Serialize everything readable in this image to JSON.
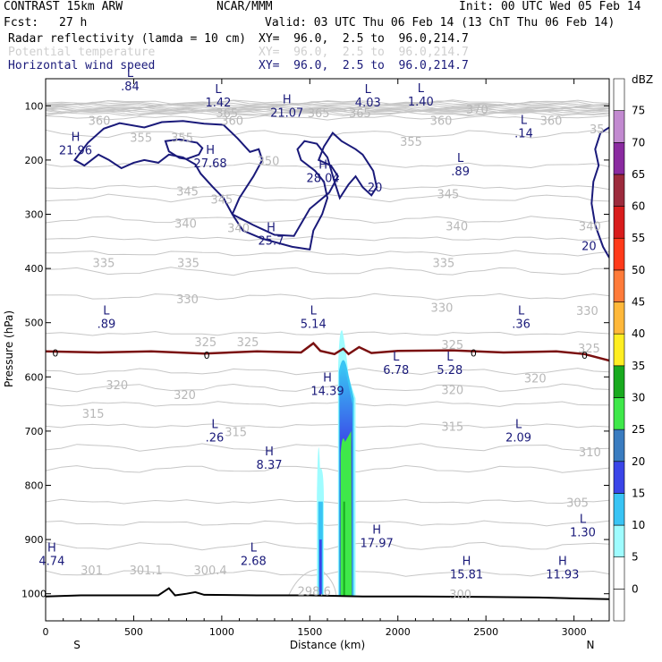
{
  "header": {
    "title": "CONTRAST 15km ARW",
    "org": "NCAR/MMM",
    "init": "Init: 00 UTC Wed 05 Feb 14",
    "fcst_label": "Fcst:",
    "fcst_value": "27 h",
    "valid": "Valid: 03 UTC Thu 06 Feb 14 (13 ChT Thu 06 Feb 14)"
  },
  "fields": [
    {
      "name": "Radar reflectivity (lamda = 10 cm)",
      "xy": "XY=  96.0,  2.5 to  96.0,214.7",
      "color": "#000000"
    },
    {
      "name": "Potential temperature",
      "xy": "XY=  96.0,  2.5 to  96.0,214.7",
      "color": "#cccccc"
    },
    {
      "name": "Horizontal wind speed",
      "xy": "XY=  96.0,  2.5 to  96.0,214.7",
      "color": "#1a1a7a"
    }
  ],
  "chart_data": {
    "type": "cross-section",
    "xlabel": "Distance (km)",
    "ylabel": "Pressure (hPa)",
    "xlim": [
      0,
      3200
    ],
    "ylim": [
      1050,
      50
    ],
    "xticks": [
      0,
      500,
      1000,
      1500,
      2000,
      2500,
      3000
    ],
    "yticks": [
      100,
      200,
      300,
      400,
      500,
      600,
      700,
      800,
      900,
      1000
    ],
    "x_end_labels": {
      "left": "S",
      "right": "N"
    },
    "colorbar": {
      "unit": "dBZ",
      "levels": [
        0,
        5,
        10,
        15,
        20,
        25,
        30,
        35,
        40,
        45,
        50,
        55,
        60,
        65,
        70,
        75
      ],
      "colors": [
        "#ffffff",
        "#ffffff",
        "#9ffcff",
        "#39c4f4",
        "#3a45e8",
        "#3a7cc0",
        "#3fe84a",
        "#18aa1e",
        "#ffee22",
        "#ffb83a",
        "#ff7b3a",
        "#ff3a1a",
        "#d81c1c",
        "#9c2a3c",
        "#8a2aa0",
        "#c28ad0",
        "#ffffff"
      ]
    },
    "theta_labels": [
      {
        "text": "360",
        "x": 305,
        "p": 128
      },
      {
        "text": "365",
        "x": 1030,
        "p": 114
      },
      {
        "text": "360",
        "x": 1060,
        "p": 128
      },
      {
        "text": "365",
        "x": 1550,
        "p": 114
      },
      {
        "text": "365",
        "x": 1785,
        "p": 114
      },
      {
        "text": "370",
        "x": 2450,
        "p": 108
      },
      {
        "text": "360",
        "x": 2245,
        "p": 128
      },
      {
        "text": "360",
        "x": 2870,
        "p": 128
      },
      {
        "text": "35",
        "x": 3130,
        "p": 144
      },
      {
        "text": "355",
        "x": 542,
        "p": 160
      },
      {
        "text": "355",
        "x": 775,
        "p": 160
      },
      {
        "text": "355",
        "x": 2075,
        "p": 167
      },
      {
        "text": "350",
        "x": 1265,
        "p": 203
      },
      {
        "text": "345",
        "x": 805,
        "p": 259
      },
      {
        "text": "345",
        "x": 1000,
        "p": 274
      },
      {
        "text": "345",
        "x": 2285,
        "p": 264
      },
      {
        "text": "340",
        "x": 795,
        "p": 318
      },
      {
        "text": "340",
        "x": 1095,
        "p": 326
      },
      {
        "text": "340",
        "x": 2335,
        "p": 323
      },
      {
        "text": "340",
        "x": 3090,
        "p": 323
      },
      {
        "text": "335",
        "x": 330,
        "p": 391
      },
      {
        "text": "335",
        "x": 810,
        "p": 391
      },
      {
        "text": "335",
        "x": 2260,
        "p": 391
      },
      {
        "text": "330",
        "x": 805,
        "p": 458
      },
      {
        "text": "330",
        "x": 2250,
        "p": 473
      },
      {
        "text": "330",
        "x": 3075,
        "p": 479
      },
      {
        "text": "325",
        "x": 908,
        "p": 537
      },
      {
        "text": "325",
        "x": 1148,
        "p": 537
      },
      {
        "text": "325",
        "x": 2310,
        "p": 542
      },
      {
        "text": "325",
        "x": 3085,
        "p": 548
      },
      {
        "text": "320",
        "x": 405,
        "p": 616
      },
      {
        "text": "320",
        "x": 790,
        "p": 634
      },
      {
        "text": "320",
        "x": 2310,
        "p": 625
      },
      {
        "text": "320",
        "x": 2780,
        "p": 604
      },
      {
        "text": "315",
        "x": 270,
        "p": 669
      },
      {
        "text": "315",
        "x": 1080,
        "p": 703
      },
      {
        "text": "315",
        "x": 2310,
        "p": 693
      },
      {
        "text": "310",
        "x": 3090,
        "p": 740
      },
      {
        "text": "305",
        "x": 3020,
        "p": 833
      },
      {
        "text": "301",
        "x": 262,
        "p": 958
      },
      {
        "text": "301.1",
        "x": 570,
        "p": 958
      },
      {
        "text": "300.4",
        "x": 935,
        "p": 958
      },
      {
        "text": "298.6",
        "x": 1525,
        "p": 996
      },
      {
        "text": "300",
        "x": 2355,
        "p": 1002
      }
    ],
    "wind_extrema": [
      {
        "type": "L",
        "value": ".84",
        "x": 480,
        "p": 50
      },
      {
        "type": "L",
        "value": "1.42",
        "x": 980,
        "p": 80
      },
      {
        "type": "H",
        "value": "21.07",
        "x": 1370,
        "p": 99
      },
      {
        "type": "L",
        "value": "4.03",
        "x": 1830,
        "p": 80
      },
      {
        "type": "L",
        "value": "1.40",
        "x": 2130,
        "p": 78
      },
      {
        "type": "L",
        "value": ".14",
        "x": 2715,
        "p": 137
      },
      {
        "type": "H",
        "value": "21.96",
        "x": 170,
        "p": 168
      },
      {
        "type": "H",
        "value": "27.68",
        "x": 935,
        "p": 192
      },
      {
        "type": "H",
        "value": "28.04",
        "x": 1575,
        "p": 219
      },
      {
        "type": "L",
        "value": ".89",
        "x": 2355,
        "p": 207
      },
      {
        "type": "H",
        "value": "25.7",
        "x": 1280,
        "p": 335
      },
      {
        "type": "L",
        "value": ".89",
        "x": 345,
        "p": 488
      },
      {
        "type": "L",
        "value": "5.14",
        "x": 1520,
        "p": 488
      },
      {
        "type": "L",
        "value": ".36",
        "x": 2700,
        "p": 488
      },
      {
        "type": "L",
        "value": "6.78",
        "x": 1990,
        "p": 573
      },
      {
        "type": "L",
        "value": "5.28",
        "x": 2295,
        "p": 573
      },
      {
        "type": "H",
        "value": "14.39",
        "x": 1600,
        "p": 612
      },
      {
        "type": "L",
        "value": ".26",
        "x": 960,
        "p": 698
      },
      {
        "type": "L",
        "value": "2.09",
        "x": 2685,
        "p": 698
      },
      {
        "type": "H",
        "value": "8.37",
        "x": 1270,
        "p": 748
      },
      {
        "type": "H",
        "value": "17.97",
        "x": 1880,
        "p": 892
      },
      {
        "type": "H",
        "value": "4.74",
        "x": 35,
        "p": 925
      },
      {
        "type": "L",
        "value": "2.68",
        "x": 1180,
        "p": 925
      },
      {
        "type": "L",
        "value": "1.30",
        "x": 3050,
        "p": 873
      },
      {
        "type": "H",
        "value": "15.81",
        "x": 2390,
        "p": 950
      },
      {
        "type": "H",
        "value": "11.93",
        "x": 2935,
        "p": 950
      }
    ],
    "wind_contour_labels": [
      {
        "text": "20",
        "x": 1870,
        "p": 250
      },
      {
        "text": "20",
        "x": 3085,
        "p": 358
      }
    ],
    "zero_line_labels": [
      {
        "text": "0",
        "x": 55,
        "p": 556
      },
      {
        "text": "0",
        "x": 915,
        "p": 560
      },
      {
        "text": "0",
        "x": 2430,
        "p": 556
      },
      {
        "text": "0",
        "x": 3060,
        "p": 560
      }
    ],
    "zero_isotherm": [
      [
        0,
        553
      ],
      [
        300,
        555
      ],
      [
        600,
        553
      ],
      [
        900,
        557
      ],
      [
        1200,
        553
      ],
      [
        1450,
        555
      ],
      [
        1520,
        538
      ],
      [
        1560,
        552
      ],
      [
        1640,
        558
      ],
      [
        1690,
        548
      ],
      [
        1720,
        558
      ],
      [
        1780,
        545
      ],
      [
        1850,
        556
      ],
      [
        2000,
        552
      ],
      [
        2300,
        551
      ],
      [
        2600,
        555
      ],
      [
        2900,
        553
      ],
      [
        3060,
        558
      ],
      [
        3200,
        570
      ]
    ],
    "terrain": [
      [
        0,
        1005
      ],
      [
        200,
        1003
      ],
      [
        400,
        1003
      ],
      [
        640,
        1003
      ],
      [
        700,
        990
      ],
      [
        735,
        1003
      ],
      [
        800,
        1000
      ],
      [
        850,
        997
      ],
      [
        900,
        1002
      ],
      [
        1200,
        1003
      ],
      [
        1500,
        1003
      ],
      [
        1800,
        1005
      ],
      [
        2100,
        1005
      ],
      [
        2500,
        1006
      ],
      [
        2800,
        1007
      ],
      [
        3200,
        1010
      ]
    ],
    "reflectivity_cells": [
      {
        "x": [
          1540,
          1580
        ],
        "p_top": 770,
        "p_bottom": 1003,
        "peak_dbz": 15
      },
      {
        "x": [
          1660,
          1760
        ],
        "p_top": 545,
        "p_bottom": 1003,
        "peak_dbz": 30
      }
    ]
  }
}
